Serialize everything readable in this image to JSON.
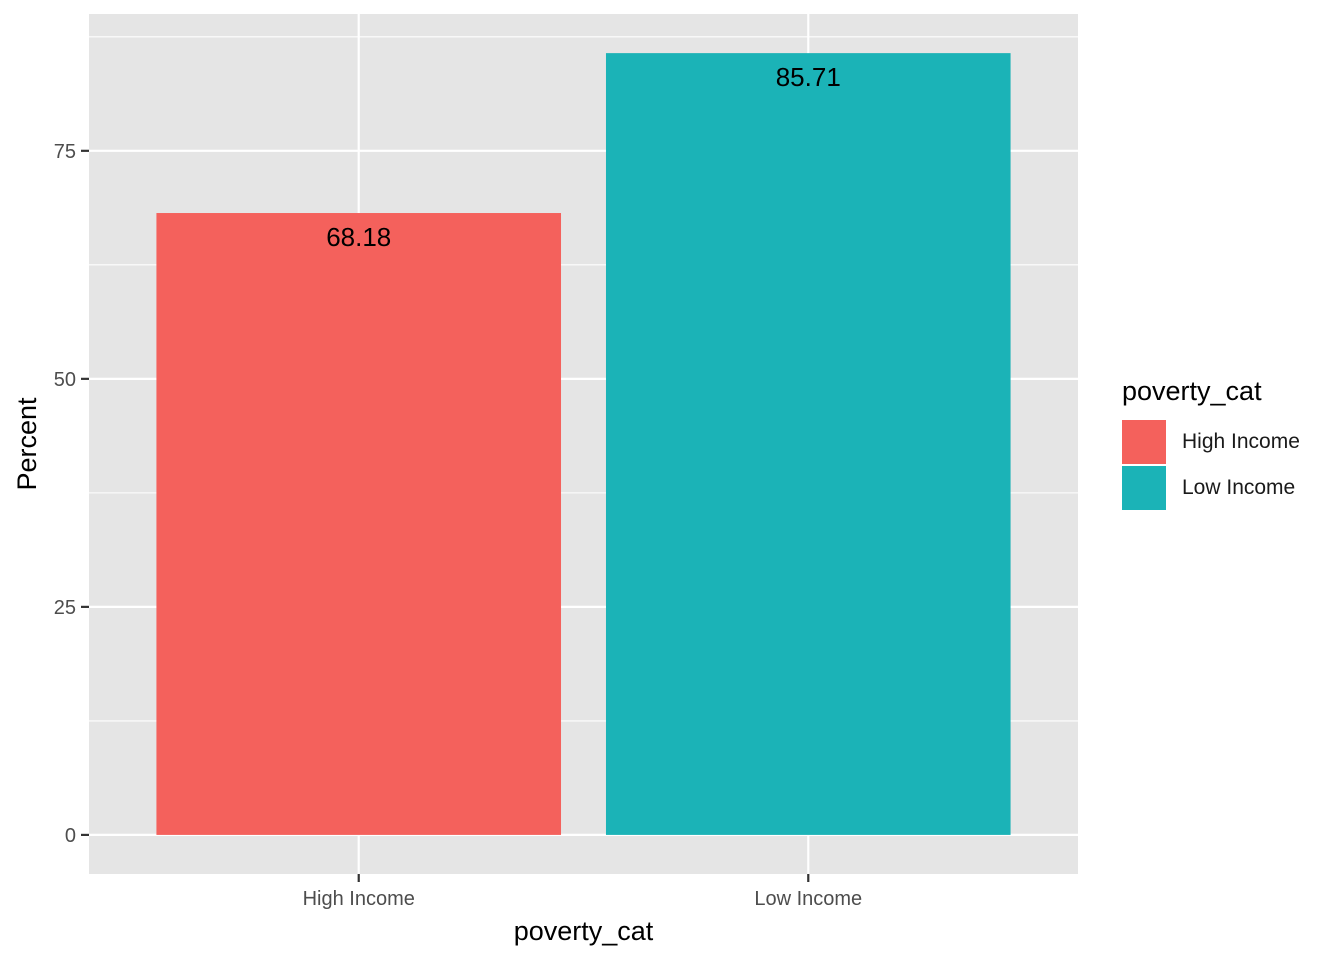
{
  "chart_data": {
    "type": "bar",
    "categories": [
      "High Income",
      "Low Income"
    ],
    "values": [
      68.18,
      85.71
    ],
    "data_labels": [
      "68.18",
      "85.71"
    ],
    "colors": [
      "#F4615C",
      "#1BB3B7"
    ],
    "xlabel": "poverty_cat",
    "ylabel": "Percent",
    "ylim": [
      -4.2857,
      90.0
    ],
    "yticks": [
      0,
      25,
      50,
      75
    ],
    "ytick_labels": [
      "0",
      "25",
      "50",
      "75"
    ],
    "grid": true,
    "panel_background": "#E5E5E5",
    "grid_color": "#FFFFFF",
    "legend": {
      "title": "poverty_cat",
      "position": "right",
      "items": [
        {
          "label": "High Income",
          "color": "#F4615C"
        },
        {
          "label": "Low Income",
          "color": "#1BB3B7"
        }
      ]
    }
  }
}
